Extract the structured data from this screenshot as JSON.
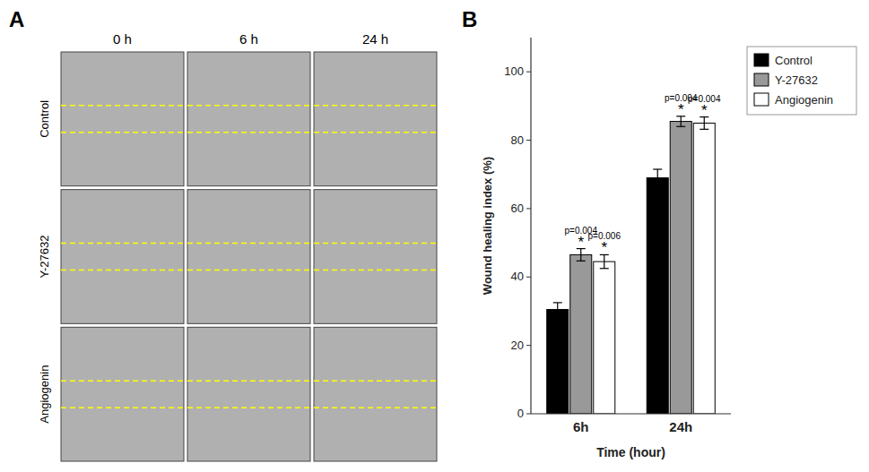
{
  "chart_data": [
    {
      "type": "image_grid",
      "title": "A",
      "categories": [
        "0 h",
        "6 h",
        "24 h"
      ],
      "rows": [
        "Control",
        "Y-27632",
        "Angiogenin"
      ]
    },
    {
      "type": "bar",
      "title": "B",
      "categories": [
        "6h",
        "24h"
      ],
      "series": [
        {
          "name": "Control",
          "color": "#000000",
          "values": [
            30.5,
            69.0
          ],
          "errors": [
            2.0,
            2.5
          ]
        },
        {
          "name": "Y-27632",
          "color": "#999999",
          "values": [
            46.5,
            85.5
          ],
          "errors": [
            1.8,
            1.5
          ]
        },
        {
          "name": "Angiogenin",
          "color": "#ffffff",
          "values": [
            44.5,
            85.0
          ],
          "errors": [
            2.0,
            1.8
          ]
        }
      ],
      "annotations": [
        {
          "series": 1,
          "category": 0,
          "texts": [
            "*",
            "p=0.004"
          ]
        },
        {
          "series": 2,
          "category": 0,
          "texts": [
            "*",
            "p=0.006"
          ]
        },
        {
          "series": 1,
          "category": 1,
          "texts": [
            "*",
            "p=0.004"
          ]
        },
        {
          "series": 2,
          "category": 1,
          "texts": [
            "*",
            "p=0.004"
          ]
        }
      ],
      "xlabel": "Time (hour)",
      "ylabel": "Wound healing index (%)",
      "ylim": [
        0,
        110
      ],
      "yticks": [
        0,
        20,
        40,
        60,
        80,
        100
      ],
      "grid": false,
      "legend": "right"
    }
  ]
}
